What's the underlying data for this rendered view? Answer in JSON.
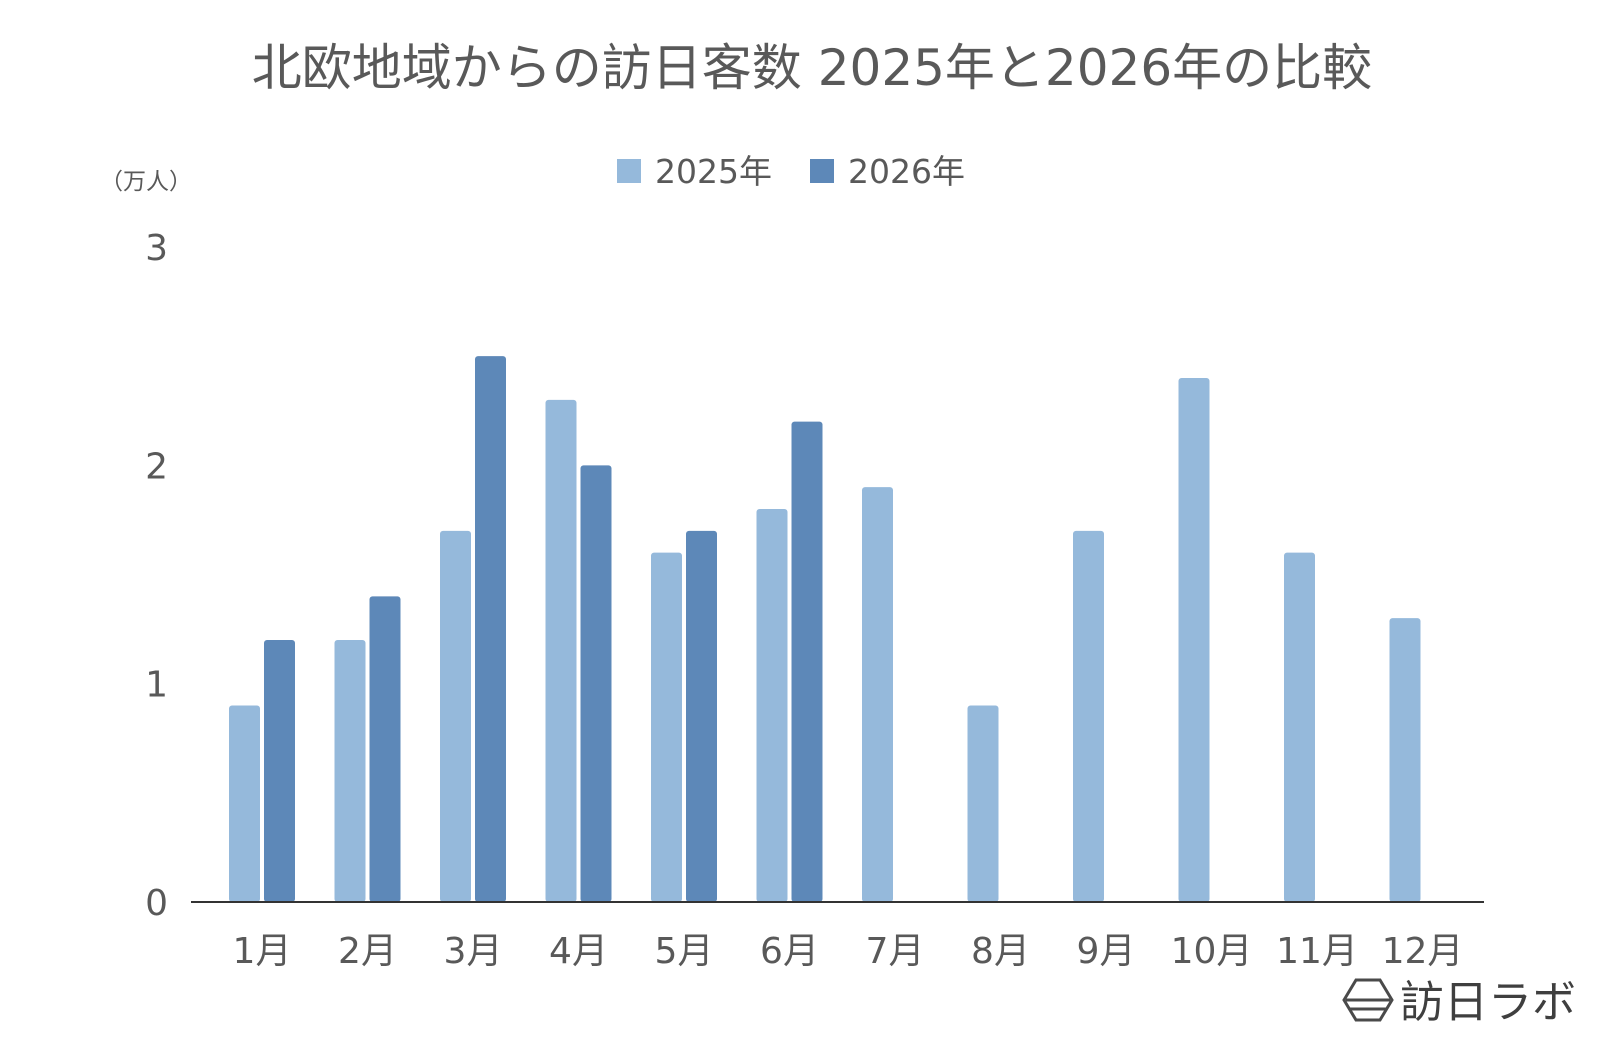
{
  "chart_data": {
    "type": "bar",
    "title": "北欧地域からの訪日客数 2025年と2026年の比較",
    "ylabel": "（万人）",
    "xlabel": "",
    "ylim": [
      0,
      3
    ],
    "yticks": [
      0,
      1,
      2,
      3
    ],
    "categories": [
      "1月",
      "2月",
      "3月",
      "4月",
      "5月",
      "6月",
      "7月",
      "8月",
      "9月",
      "10月",
      "11月",
      "12月"
    ],
    "series": [
      {
        "name": "2025年",
        "color": "#95b9db",
        "values": [
          0.9,
          1.2,
          1.7,
          2.3,
          1.6,
          1.8,
          1.9,
          0.9,
          1.7,
          2.4,
          1.6,
          1.3
        ]
      },
      {
        "name": "2026年",
        "color": "#5d88b8",
        "values": [
          1.2,
          1.4,
          2.5,
          2.0,
          1.7,
          2.2,
          null,
          null,
          null,
          null,
          null,
          null
        ]
      }
    ],
    "legend_position": "top",
    "grid": false
  },
  "brand": {
    "name": "訪日ラボ",
    "icon": "hexagon-logo-icon"
  }
}
